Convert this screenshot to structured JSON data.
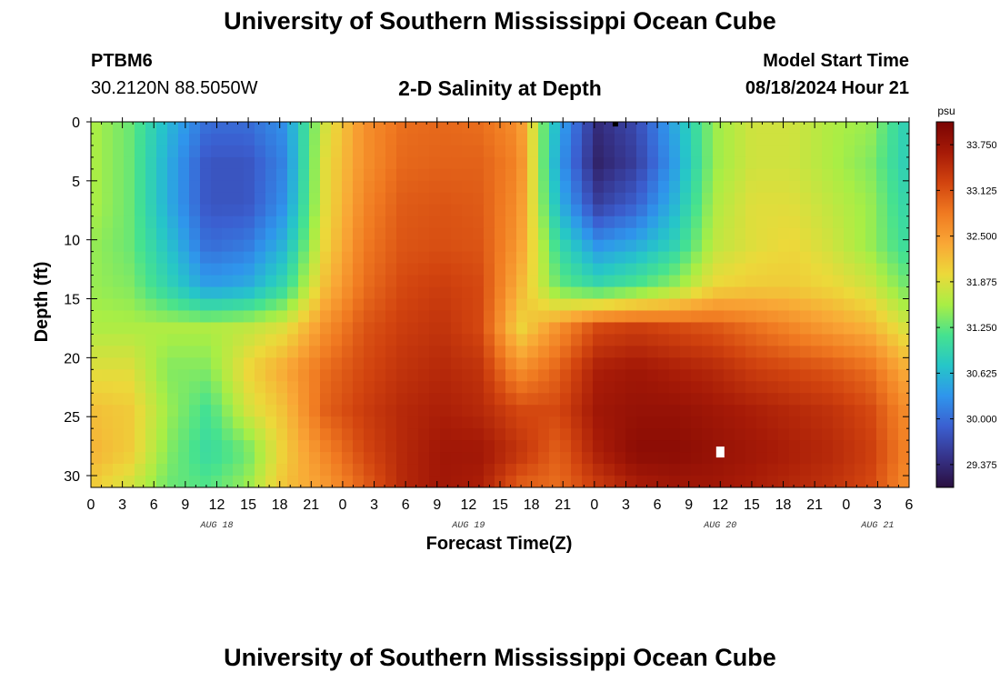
{
  "header": {
    "title": "University of Southern Mississippi Ocean Cube",
    "station": "PTBM6",
    "coords": "30.2120N  88.5050W",
    "subtitle": "2-D Salinity at Depth",
    "model_start_label": "Model Start Time",
    "model_start_value": "08/18/2024 Hour 21"
  },
  "footer": {
    "title": "University of Southern Mississippi Ocean Cube"
  },
  "chart_data": {
    "type": "heatmap",
    "title": "2-D Salinity at Depth",
    "xlabel": "Forecast Time(Z)",
    "ylabel": "Depth (ft)",
    "x_hours_range": [
      0,
      78
    ],
    "ylim": [
      0,
      31
    ],
    "y_ticks": [
      0,
      5,
      10,
      15,
      20,
      25,
      30
    ],
    "x_ticks": [
      {
        "h": 0,
        "label": "0"
      },
      {
        "h": 3,
        "label": "3"
      },
      {
        "h": 6,
        "label": "6"
      },
      {
        "h": 9,
        "label": "9"
      },
      {
        "h": 12,
        "label": "12"
      },
      {
        "h": 15,
        "label": "15"
      },
      {
        "h": 18,
        "label": "18"
      },
      {
        "h": 21,
        "label": "21"
      },
      {
        "h": 24,
        "label": "0"
      },
      {
        "h": 27,
        "label": "3"
      },
      {
        "h": 30,
        "label": "6"
      },
      {
        "h": 33,
        "label": "9"
      },
      {
        "h": 36,
        "label": "12"
      },
      {
        "h": 39,
        "label": "15"
      },
      {
        "h": 42,
        "label": "18"
      },
      {
        "h": 45,
        "label": "21"
      },
      {
        "h": 48,
        "label": "0"
      },
      {
        "h": 51,
        "label": "3"
      },
      {
        "h": 54,
        "label": "6"
      },
      {
        "h": 57,
        "label": "9"
      },
      {
        "h": 60,
        "label": "12"
      },
      {
        "h": 63,
        "label": "15"
      },
      {
        "h": 66,
        "label": "18"
      },
      {
        "h": 69,
        "label": "21"
      },
      {
        "h": 72,
        "label": "0"
      },
      {
        "h": 75,
        "label": "3"
      },
      {
        "h": 78,
        "label": "6"
      }
    ],
    "date_labels": [
      {
        "h": 12,
        "label": "AUG 18"
      },
      {
        "h": 36,
        "label": "AUG 19"
      },
      {
        "h": 60,
        "label": "AUG 20"
      },
      {
        "h": 75,
        "label": "AUG 21"
      }
    ],
    "colorbar": {
      "unit": "psu",
      "range": [
        29.0625,
        34.0625
      ],
      "ticks": [
        "33.750",
        "33.125",
        "32.500",
        "31.875",
        "31.250",
        "30.625",
        "30.000",
        "29.375"
      ],
      "colors": [
        "#2a0f3f",
        "#36338a",
        "#3b5fd0",
        "#2f95ec",
        "#26c6c8",
        "#46e28f",
        "#a9ee45",
        "#ecd93a",
        "#f9a736",
        "#f07a21",
        "#d2440f",
        "#a61a07",
        "#7a0403"
      ]
    },
    "grid": [
      [
        31.6,
        31.3,
        30.6,
        30.0,
        30.0,
        30.3,
        31.8,
        32.6,
        32.9,
        32.95,
        32.9,
        32.6,
        30.5,
        29.4,
        29.7,
        30.5,
        31.5,
        31.8,
        31.8,
        31.6,
        31.5,
        30.8
      ],
      [
        31.6,
        31.3,
        30.5,
        29.8,
        29.8,
        30.2,
        31.9,
        32.6,
        32.95,
        33.0,
        33.0,
        32.7,
        30.4,
        29.3,
        29.6,
        30.4,
        31.5,
        31.8,
        31.8,
        31.6,
        31.4,
        30.8
      ],
      [
        31.6,
        31.3,
        30.5,
        29.8,
        29.8,
        30.3,
        31.9,
        32.7,
        33.05,
        33.1,
        33.05,
        32.6,
        30.6,
        29.6,
        29.9,
        30.6,
        31.6,
        31.9,
        31.9,
        31.7,
        31.5,
        30.9
      ],
      [
        31.5,
        31.3,
        30.7,
        30.0,
        30.1,
        30.6,
        32.0,
        32.8,
        33.1,
        33.15,
        33.1,
        32.5,
        31.0,
        30.3,
        30.5,
        30.9,
        31.7,
        31.9,
        32.0,
        31.8,
        31.5,
        31.0
      ],
      [
        31.5,
        31.4,
        30.9,
        30.4,
        30.5,
        31.0,
        32.2,
        32.9,
        33.2,
        33.3,
        33.2,
        32.3,
        31.3,
        31.0,
        31.2,
        31.5,
        32.0,
        32.1,
        32.1,
        32.0,
        31.8,
        31.3
      ],
      [
        31.6,
        31.6,
        31.6,
        31.6,
        31.7,
        31.9,
        32.6,
        33.1,
        33.3,
        33.4,
        33.2,
        32.0,
        32.6,
        33.2,
        33.3,
        33.2,
        33.1,
        32.9,
        32.7,
        32.5,
        32.3,
        31.8
      ],
      [
        31.9,
        31.9,
        31.4,
        31.4,
        32.0,
        32.4,
        32.9,
        33.2,
        33.4,
        33.5,
        33.4,
        32.6,
        33.0,
        33.6,
        33.7,
        33.6,
        33.5,
        33.3,
        33.2,
        33.1,
        32.9,
        32.3
      ],
      [
        32.2,
        32.1,
        31.5,
        31.1,
        31.8,
        32.2,
        33.0,
        33.3,
        33.5,
        33.6,
        33.5,
        33.2,
        33.2,
        33.7,
        33.8,
        33.8,
        33.7,
        33.6,
        33.5,
        33.4,
        33.2,
        32.6
      ],
      [
        32.3,
        32.1,
        31.4,
        31.0,
        31.3,
        32.1,
        32.7,
        33.2,
        33.5,
        33.7,
        33.7,
        33.4,
        33.0,
        33.6,
        33.9,
        33.9,
        33.8,
        33.7,
        33.6,
        33.5,
        33.3,
        32.7
      ],
      [
        32.1,
        31.8,
        31.3,
        31.2,
        31.5,
        32.2,
        32.5,
        33.0,
        33.5,
        33.7,
        33.6,
        33.0,
        32.9,
        33.3,
        33.6,
        33.7,
        33.7,
        33.6,
        33.5,
        33.4,
        33.2,
        32.6
      ]
    ],
    "grid_depths": [
      0,
      3.5,
      7,
      10.5,
      14,
      17.5,
      21,
      24.5,
      28,
      31
    ],
    "grid_hours_step": 3.714,
    "markers": [
      {
        "h": 50,
        "depth": 0.2,
        "color": "#000000"
      },
      {
        "h": 60,
        "depth": 28,
        "color": "#ffffff"
      }
    ]
  }
}
